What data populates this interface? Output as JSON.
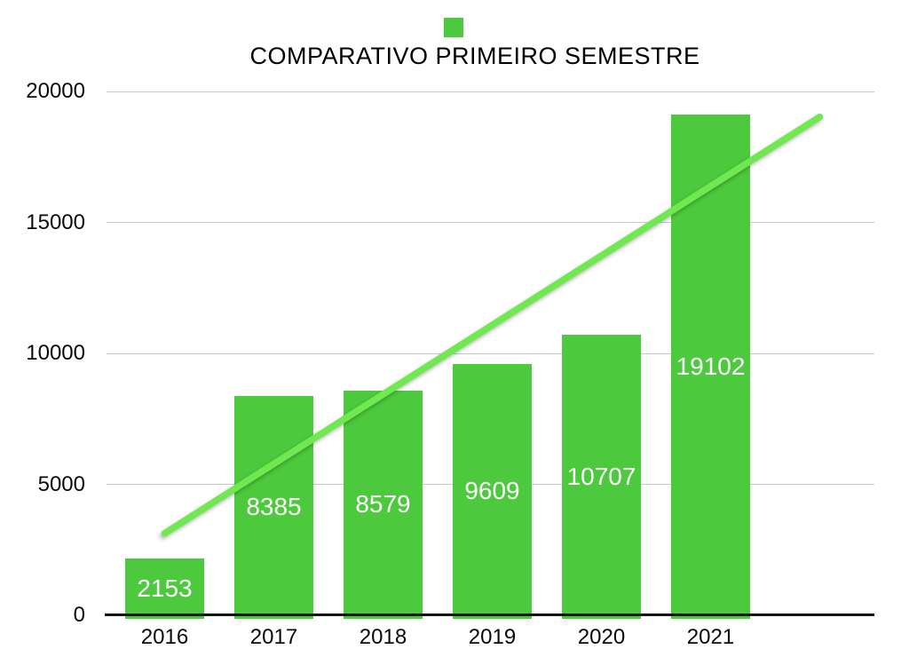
{
  "chart_data": {
    "type": "bar",
    "title": "COMPARATIVO PRIMEIRO SEMESTRE",
    "categories": [
      "2016",
      "2017",
      "2018",
      "2019",
      "2020",
      "2021"
    ],
    "values": [
      2153,
      8385,
      8579,
      9609,
      10707,
      19102
    ],
    "bar_labels": [
      "2153",
      "8385",
      "8579",
      "9609",
      "10707",
      "19102"
    ],
    "xlabel": "",
    "ylabel": "",
    "ylim": [
      0,
      20000
    ],
    "y_ticks": [
      0,
      5000,
      10000,
      15000,
      20000
    ],
    "y_tick_labels": [
      "0",
      "5000",
      "10000",
      "15000",
      "20000"
    ],
    "grid": true,
    "legend_position": "top-center",
    "trendline": {
      "start_category_index": 0,
      "end_category_index": 6,
      "start_value": 3132,
      "end_value": 19030
    },
    "colors": {
      "bar": "#4cc93c",
      "trendline": "#70e951",
      "gridline": "#c9c9c9",
      "axis": "#141414",
      "bar_label_text": "#ffffff",
      "tick_text": "#0a0a0a",
      "title_text": "#000000",
      "background": "#ffffff"
    }
  }
}
